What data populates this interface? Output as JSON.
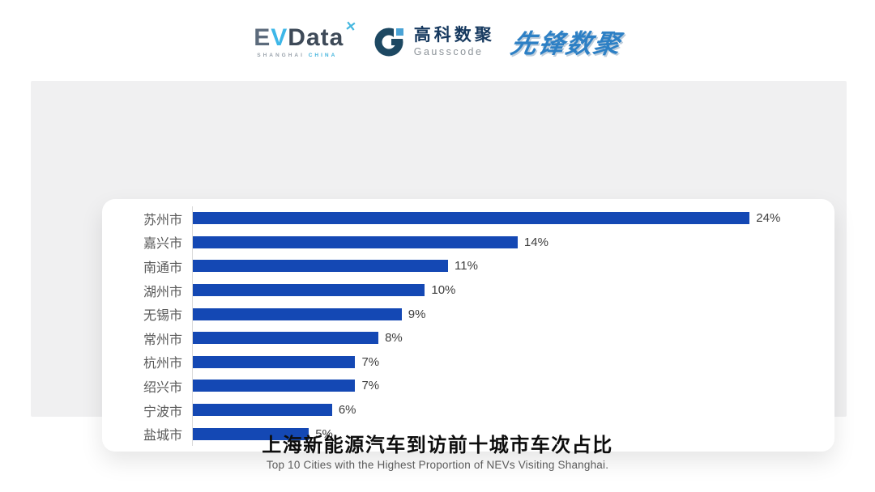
{
  "header": {
    "evdata_logo": {
      "part_e": "E",
      "part_v": "V",
      "part_data": "Data",
      "mark": "✕",
      "tagline_left": "SHANGHAI",
      "tagline_right": "CHINA"
    },
    "gausscode_logo": {
      "cn_name": "高科数聚",
      "en_name": "Gausscode"
    },
    "xianfeng_logo": {
      "text": "先锋数聚"
    }
  },
  "chart_data": {
    "type": "bar",
    "orientation": "horizontal",
    "title": "上海新能源汽车到访前十城市车次占比",
    "subtitle": "Top 10 Cities with the Highest Proportion of  NEVs Visiting Shanghai.",
    "categories": [
      "苏州市",
      "嘉兴市",
      "南通市",
      "湖州市",
      "无锡市",
      "常州市",
      "杭州市",
      "绍兴市",
      "宁波市",
      "盐城市"
    ],
    "values": [
      24,
      14,
      11,
      10,
      9,
      8,
      7,
      7,
      6,
      5
    ],
    "value_labels": [
      "24%",
      "14%",
      "11%",
      "10%",
      "9%",
      "8%",
      "7%",
      "7%",
      "6%",
      "5%"
    ],
    "unit": "%",
    "xlim": [
      0,
      27
    ],
    "grid": false,
    "legend": false,
    "bar_color": "#1448b4",
    "axis_line_color": "#d9d9d9",
    "category_label_color": "#595959",
    "value_label_color": "#3d3d3d"
  },
  "colors": {
    "panel_bg": "#f0f0f1",
    "card_bg": "#ffffff",
    "accent_blue": "#1448b4",
    "evdata_light_blue": "#3eb7e8",
    "evdata_slate": "#3e4a58",
    "gauss_navy": "#16395f",
    "gauss_ring": "#1d4862",
    "gauss_accent": "#4aa3d6",
    "pioneer_blue": "#2d80c5"
  }
}
